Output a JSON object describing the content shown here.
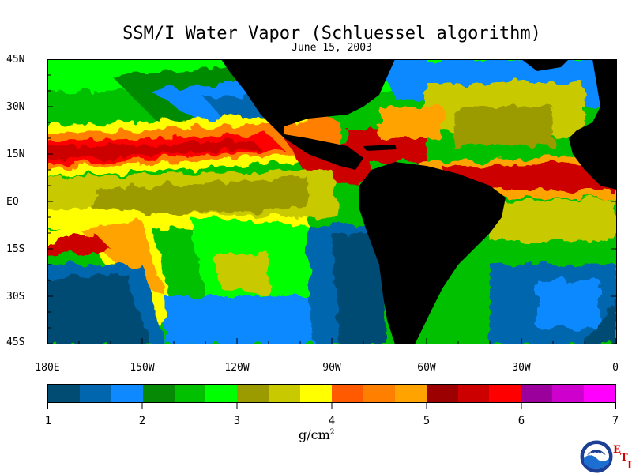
{
  "title": "SSM/I Water Vapor (Schluessel algorithm)",
  "date": "June 15, 2003",
  "lat_labels": [
    "45N",
    "30N",
    "15N",
    "EQ",
    "15S",
    "30S",
    "45S"
  ],
  "lon_labels": [
    "180E",
    "150W",
    "120W",
    "90W",
    "60W",
    "30W",
    "0"
  ],
  "colorbar": {
    "ticks": [
      "1",
      "2",
      "3",
      "4",
      "5",
      "6",
      "7"
    ],
    "units": "g/cm",
    "units_sup": "2",
    "colors": [
      "#014c73",
      "#0166ae",
      "#0f89ff",
      "#068a06",
      "#00c000",
      "#00ff00",
      "#9b9b00",
      "#c9c900",
      "#ffff00",
      "#ff5a00",
      "#ff7f00",
      "#ffa300",
      "#9c0000",
      "#cd0000",
      "#ff0000",
      "#9c009c",
      "#cd00cd",
      "#ff00ff"
    ]
  },
  "legend": {
    "land_color": "#000000",
    "missing_color": "#ffffff",
    "value_range_g_cm2": [
      1,
      7
    ]
  },
  "logo": {
    "name": "NOAA",
    "letters": [
      "E",
      "T",
      "I"
    ]
  }
}
